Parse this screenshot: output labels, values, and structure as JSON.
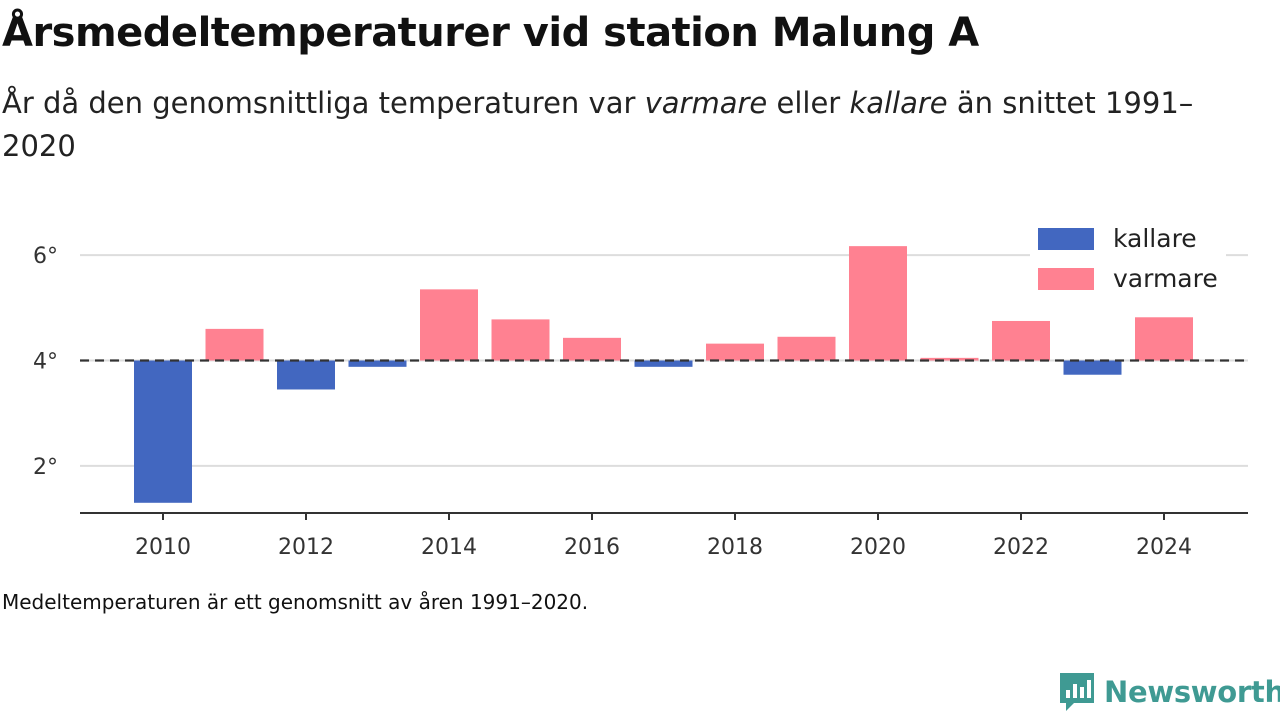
{
  "title": "Årsmedeltemperaturer vid station Malung A",
  "subtitle": {
    "pre": "År då den genomsnittliga temperaturen var ",
    "warm": "varmare",
    "mid": " eller ",
    "cold": "kallare",
    "post": " än snittet 1991–2020"
  },
  "footnote": "Medeltemperaturen är ett genomsnitt av åren 1991–2020.",
  "brand": {
    "name": "Newsworthy",
    "color": "#3f9a93"
  },
  "chart_data": {
    "type": "bar",
    "baseline": 4.0,
    "x": [
      2010,
      2011,
      2012,
      2013,
      2014,
      2015,
      2016,
      2017,
      2018,
      2019,
      2020,
      2021,
      2022,
      2023,
      2024
    ],
    "values": [
      1.3,
      4.6,
      3.45,
      3.88,
      5.35,
      4.78,
      4.43,
      3.88,
      4.32,
      4.45,
      6.17,
      4.05,
      4.75,
      3.73,
      4.82
    ],
    "ylim": [
      1.0,
      7.0
    ],
    "yticks": [
      2,
      4,
      6
    ],
    "ytick_labels": [
      "2°",
      "4°",
      "6°"
    ],
    "xticks": [
      2010,
      2012,
      2014,
      2016,
      2018,
      2020,
      2022,
      2024
    ],
    "xtick_labels": [
      "2010",
      "2012",
      "2014",
      "2016",
      "2018",
      "2020",
      "2022",
      "2024"
    ],
    "grid": true,
    "legend": {
      "position": "top-right",
      "entries": [
        {
          "name": "kallare",
          "color": "#4267c0"
        },
        {
          "name": "varmare",
          "color": "#ff8191"
        }
      ]
    },
    "colors": {
      "colder": "#4267c0",
      "warmer": "#ff8191",
      "reference_line": "#333333",
      "grid": "#dddddd",
      "axis": "#333333"
    }
  }
}
